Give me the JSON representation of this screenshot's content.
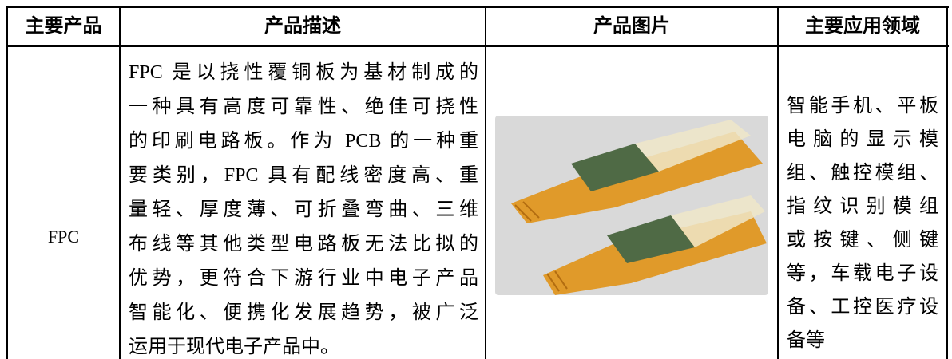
{
  "table": {
    "header": [
      "主要产品",
      "产品描述",
      "产品图片",
      "主要应用领域"
    ],
    "rows": [
      {
        "product": "FPC",
        "description": [
          "FPC 是以挠性覆铜板为基材制成的",
          "一种具有高度可靠性、绝佳可挠性",
          "的印刷电路板。作为 PCB 的一种重",
          "要类别，FPC 具有配线密度高、重",
          "量轻、厚度薄、可折叠弯曲、三维",
          "布线等其他类型电路板无法比拟的",
          "优势，更符合下游行业中电子产品",
          "智能化、便携化发展趋势，被广泛",
          "运用于现代电子产品中。"
        ],
        "application": [
          "智能手机、平板",
          "电脑的显示模",
          "组、触控模组、",
          "指纹识别模组",
          "或按键、侧键",
          "等，车载电子设",
          "备、工控医疗设",
          "备等"
        ]
      }
    ]
  }
}
